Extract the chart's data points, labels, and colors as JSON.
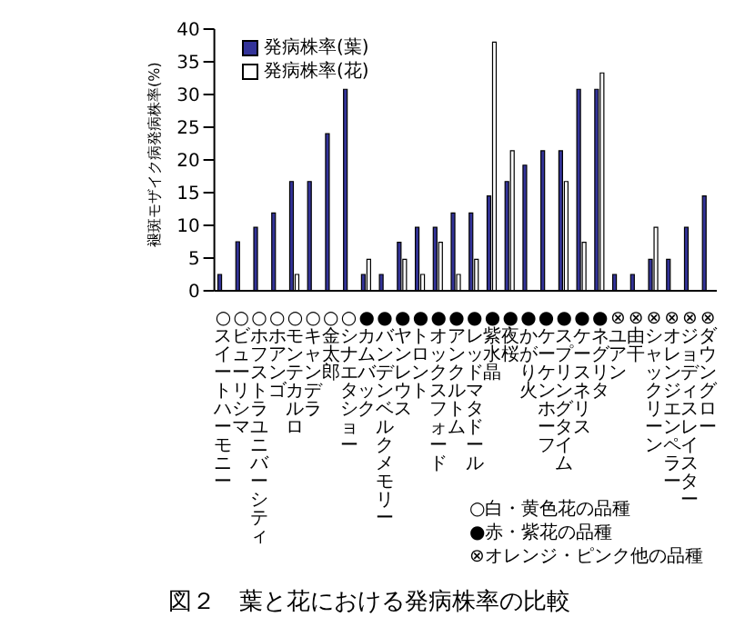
{
  "chart_data": {
    "type": "bar",
    "title": "図２　葉と花における発病株率の比較",
    "ylabel": "褪斑モザイク病発病株率(%)",
    "categories": [
      "○スイートハーモニー",
      "○ビューリシマ",
      "○ホフストラユニバーシティ",
      "○ホアンゴ",
      "○モンテカルロ",
      "○キャンデラ",
      "○金太郎",
      "○シナエタショー",
      "●カムバック",
      "●バンデンベルクメモリー",
      "●ヤンレウス",
      "●トロント",
      "●オックスフォード",
      "●アンクルトム",
      "●レッドマタドール",
      "●紫水晶",
      "●夜桜",
      "●かがり火",
      "●ケーケンホーフ",
      "●スプリングタイム",
      "●ケースネリス",
      "●ネグリタ",
      "⊗ユアン",
      "⊗由干",
      "⊗シャックリーン",
      "⊗オレンジエンペラー",
      "⊗ジョディスレイスター",
      "⊗ダウングロー"
    ],
    "series": [
      {
        "name": "発病株率(葉)",
        "color": "#333399",
        "values": [
          2.5,
          7.5,
          9.7,
          11.9,
          16.7,
          16.7,
          24,
          30.8,
          2.5,
          2.5,
          7.4,
          9.7,
          9.7,
          11.9,
          11.9,
          14.5,
          16.7,
          19.2,
          21.4,
          21.4,
          30.8,
          30.8,
          2.5,
          2.5,
          4.8,
          4.8,
          9.7,
          14.5
        ]
      },
      {
        "name": "発病株率(花)",
        "color": "#ffffff",
        "values": [
          0,
          0,
          0,
          0,
          2.5,
          0,
          0,
          0,
          4.8,
          0,
          4.8,
          2.5,
          7.4,
          2.5,
          4.8,
          38,
          21.4,
          0,
          0,
          16.7,
          7.4,
          33.3,
          0,
          0,
          9.7,
          0,
          0,
          0
        ]
      }
    ],
    "ylim": [
      0,
      40
    ],
    "yticks": [
      0,
      5,
      10,
      15,
      20,
      25,
      30,
      35,
      40
    ],
    "grid": false,
    "legend": "top left",
    "annotations": [
      "○白・黄色花の品種",
      "●赤・紫花の品種",
      "⊗オレンジ・ピンク他の品種"
    ]
  }
}
